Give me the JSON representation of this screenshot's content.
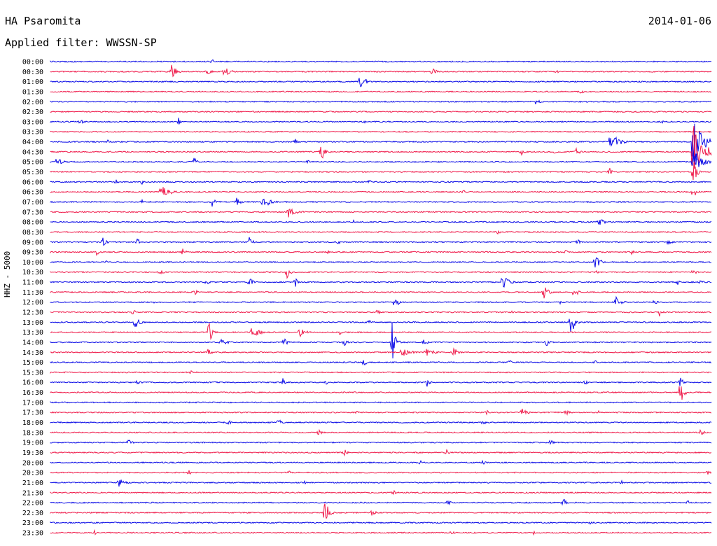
{
  "header": {
    "station": "HA Psaromita",
    "date": "2014-01-06",
    "filter": "Applied filter: WWSSN-SP",
    "channel": "HHZ - 5000"
  },
  "colors": {
    "even": "#0a0ae6",
    "odd": "#ef1a4a",
    "text": "#000000"
  },
  "chart_data": {
    "type": "line",
    "title": "HA Psaromita",
    "subtitle": "Applied filter: WWSSN-SP",
    "ylabel": "HHZ - 5000",
    "traces": [
      {
        "label": "00:00",
        "events": [
          [
            303,
            4,
            3
          ]
        ]
      },
      {
        "label": "00:30",
        "events": [
          [
            245,
            12,
            6
          ],
          [
            295,
            6,
            6
          ],
          [
            320,
            8,
            8
          ],
          [
            618,
            6,
            5
          ],
          [
            795,
            3,
            4
          ]
        ]
      },
      {
        "label": "01:00",
        "events": [
          [
            514,
            14,
            6
          ]
        ]
      },
      {
        "label": "01:30",
        "events": [
          [
            830,
            5,
            4
          ]
        ]
      },
      {
        "label": "02:00",
        "events": [
          [
            765,
            5,
            5
          ]
        ]
      },
      {
        "label": "02:30",
        "events": []
      },
      {
        "label": "03:00",
        "events": [
          [
            113,
            5,
            5
          ],
          [
            255,
            6,
            5
          ],
          [
            520,
            3,
            4
          ],
          [
            945,
            3,
            4
          ]
        ]
      },
      {
        "label": "03:30",
        "events": []
      },
      {
        "label": "04:00",
        "events": [
          [
            154,
            3,
            3
          ],
          [
            422,
            4,
            3
          ],
          [
            872,
            14,
            12
          ],
          [
            990,
            45,
            10
          ]
        ]
      },
      {
        "label": "04:30",
        "events": [
          [
            458,
            16,
            5
          ],
          [
            745,
            5,
            5
          ],
          [
            790,
            5,
            5
          ],
          [
            822,
            6,
            6
          ],
          [
            990,
            40,
            14
          ]
        ]
      },
      {
        "label": "05:00",
        "events": [
          [
            82,
            8,
            6
          ],
          [
            276,
            8,
            5
          ],
          [
            440,
            3,
            4
          ],
          [
            990,
            20,
            10
          ]
        ]
      },
      {
        "label": "05:30",
        "events": [
          [
            870,
            8,
            3
          ],
          [
            990,
            25,
            4
          ]
        ]
      },
      {
        "label": "06:00",
        "events": [
          [
            165,
            4,
            4
          ],
          [
            203,
            6,
            3
          ],
          [
            527,
            4,
            3
          ]
        ]
      },
      {
        "label": "06:30",
        "events": [
          [
            230,
            9,
            12
          ],
          [
            662,
            4,
            4
          ],
          [
            990,
            10,
            4
          ]
        ]
      },
      {
        "label": "07:00",
        "events": [
          [
            203,
            3,
            3
          ],
          [
            302,
            8,
            6
          ],
          [
            338,
            6,
            6
          ],
          [
            375,
            12,
            8
          ]
        ]
      },
      {
        "label": "07:30",
        "events": [
          [
            412,
            8,
            10
          ]
        ]
      },
      {
        "label": "08:00",
        "events": [
          [
            505,
            3,
            3
          ],
          [
            855,
            6,
            8
          ]
        ]
      },
      {
        "label": "08:30",
        "events": [
          [
            710,
            4,
            4
          ]
        ]
      },
      {
        "label": "09:00",
        "events": [
          [
            147,
            9,
            4
          ],
          [
            196,
            8,
            3
          ],
          [
            356,
            9,
            4
          ],
          [
            482,
            5,
            4
          ],
          [
            825,
            5,
            3
          ],
          [
            955,
            5,
            4
          ]
        ]
      },
      {
        "label": "09:30",
        "events": [
          [
            138,
            6,
            3
          ],
          [
            260,
            6,
            5
          ],
          [
            468,
            3,
            3
          ],
          [
            808,
            5,
            3
          ],
          [
            902,
            6,
            3
          ]
        ]
      },
      {
        "label": "10:00",
        "events": [
          [
            152,
            3,
            4
          ],
          [
            850,
            9,
            8
          ]
        ]
      },
      {
        "label": "10:30",
        "events": [
          [
            228,
            6,
            4
          ],
          [
            382,
            4,
            3
          ],
          [
            410,
            9,
            4
          ],
          [
            852,
            3,
            3
          ],
          [
            990,
            4,
            6
          ]
        ]
      },
      {
        "label": "11:00",
        "events": [
          [
            295,
            7,
            4
          ],
          [
            356,
            7,
            5
          ],
          [
            422,
            8,
            3
          ],
          [
            718,
            11,
            8
          ],
          [
            968,
            4,
            4
          ],
          [
            1000,
            5,
            5
          ]
        ]
      },
      {
        "label": "11:30",
        "events": [
          [
            278,
            6,
            4
          ],
          [
            777,
            9,
            6
          ],
          [
            820,
            7,
            6
          ]
        ]
      },
      {
        "label": "12:00",
        "events": [
          [
            222,
            3,
            3
          ],
          [
            563,
            9,
            6
          ],
          [
            800,
            4,
            3
          ],
          [
            880,
            8,
            7
          ],
          [
            935,
            4,
            4
          ]
        ]
      },
      {
        "label": "12:30",
        "events": [
          [
            190,
            5,
            3
          ],
          [
            540,
            6,
            3
          ],
          [
            732,
            5,
            3
          ],
          [
            942,
            6,
            8
          ]
        ]
      },
      {
        "label": "13:00",
        "events": [
          [
            193,
            9,
            7
          ],
          [
            527,
            5,
            3
          ],
          [
            815,
            30,
            4
          ]
        ]
      },
      {
        "label": "13:30",
        "events": [
          [
            298,
            20,
            4
          ],
          [
            360,
            11,
            8
          ],
          [
            428,
            7,
            8
          ],
          [
            485,
            4,
            4
          ]
        ]
      },
      {
        "label": "14:00",
        "events": [
          [
            315,
            5,
            10
          ],
          [
            406,
            7,
            4
          ],
          [
            492,
            6,
            4
          ],
          [
            560,
            30,
            4
          ],
          [
            605,
            6,
            5
          ],
          [
            780,
            6,
            5
          ]
        ]
      },
      {
        "label": "14:30",
        "events": [
          [
            298,
            10,
            3
          ],
          [
            573,
            8,
            10
          ],
          [
            608,
            6,
            12
          ],
          [
            648,
            7,
            6
          ]
        ]
      },
      {
        "label": "15:00",
        "events": [
          [
            520,
            6,
            4
          ],
          [
            728,
            4,
            3
          ],
          [
            850,
            3,
            3
          ]
        ]
      },
      {
        "label": "15:30",
        "events": [
          [
            273,
            3,
            3
          ]
        ]
      },
      {
        "label": "16:00",
        "events": [
          [
            197,
            5,
            4
          ],
          [
            404,
            6,
            3
          ],
          [
            466,
            4,
            3
          ],
          [
            610,
            6,
            4
          ],
          [
            836,
            4,
            3
          ],
          [
            970,
            12,
            4
          ]
        ]
      },
      {
        "label": "16:30",
        "events": [
          [
            972,
            22,
            4
          ]
        ]
      },
      {
        "label": "17:00",
        "events": []
      },
      {
        "label": "17:30",
        "events": [
          [
            510,
            4,
            3
          ],
          [
            695,
            4,
            3
          ],
          [
            745,
            6,
            8
          ],
          [
            808,
            4,
            6
          ],
          [
            855,
            4,
            4
          ]
        ]
      },
      {
        "label": "18:00",
        "events": [
          [
            326,
            4,
            4
          ],
          [
            398,
            6,
            4
          ],
          [
            690,
            5,
            3
          ]
        ]
      },
      {
        "label": "18:30",
        "events": [
          [
            455,
            5,
            4
          ],
          [
            1000,
            5,
            5
          ]
        ]
      },
      {
        "label": "19:00",
        "events": [
          [
            183,
            5,
            5
          ],
          [
            787,
            6,
            4
          ]
        ]
      },
      {
        "label": "19:30",
        "events": [
          [
            492,
            5,
            4
          ],
          [
            638,
            4,
            4
          ]
        ]
      },
      {
        "label": "20:00",
        "events": [
          [
            600,
            4,
            4
          ],
          [
            690,
            5,
            3
          ]
        ]
      },
      {
        "label": "20:30",
        "events": [
          [
            270,
            4,
            3
          ],
          [
            413,
            3,
            3
          ],
          [
            1010,
            5,
            3
          ]
        ]
      },
      {
        "label": "21:00",
        "events": [
          [
            170,
            6,
            8
          ],
          [
            435,
            3,
            3
          ],
          [
            888,
            3,
            3
          ]
        ]
      },
      {
        "label": "21:30",
        "events": [
          [
            560,
            5,
            6
          ]
        ]
      },
      {
        "label": "22:00",
        "events": [
          [
            640,
            5,
            3
          ],
          [
            805,
            7,
            3
          ],
          [
            982,
            5,
            3
          ]
        ]
      },
      {
        "label": "22:30",
        "events": [
          [
            464,
            20,
            5
          ],
          [
            530,
            5,
            6
          ]
        ]
      },
      {
        "label": "23:00",
        "events": [
          [
            845,
            4,
            3
          ]
        ]
      },
      {
        "label": "23:30",
        "events": [
          [
            135,
            4,
            3
          ],
          [
            645,
            4,
            3
          ],
          [
            762,
            4,
            3
          ]
        ]
      }
    ]
  }
}
